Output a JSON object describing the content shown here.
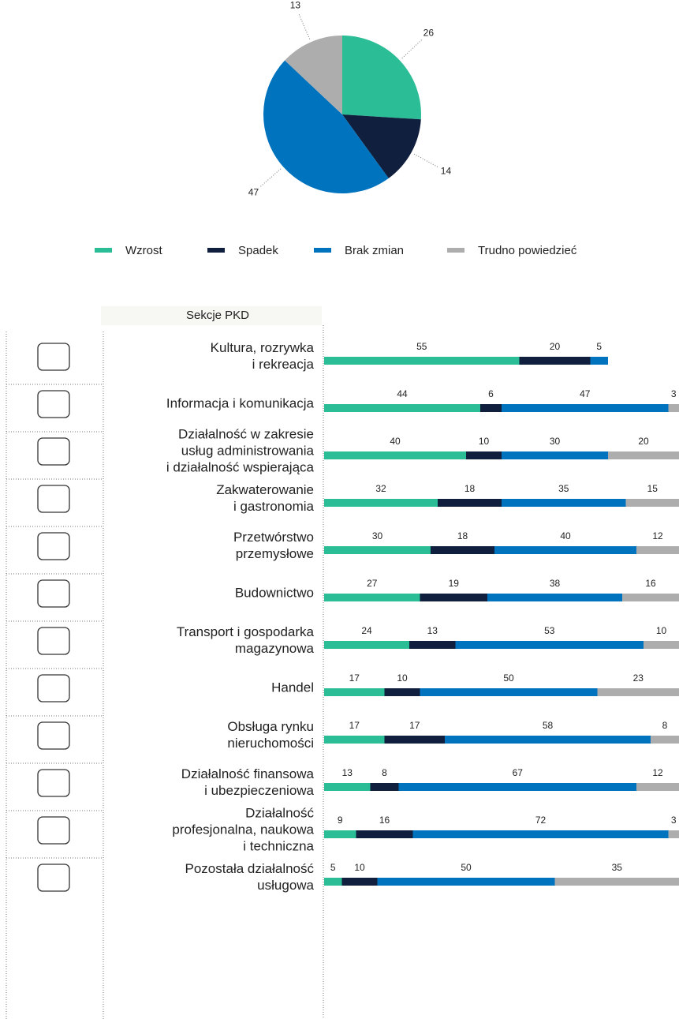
{
  "chart_data": [
    {
      "type": "pie",
      "categories": [
        "Wzrost",
        "Spadek",
        "Brak zmian",
        "Trudno powiedzieć"
      ],
      "values": [
        26,
        14,
        47,
        13
      ],
      "colors": [
        "#2bbd96",
        "#0f1f3d",
        "#0073bf",
        "#adadad"
      ],
      "legend": "bottom"
    },
    {
      "type": "stacked-bar-horizontal",
      "category_header": "Sekcje PKD",
      "categories": [
        [
          "Kultura, rozrywka",
          "i rekreacja"
        ],
        [
          "Informacja i komunikacja"
        ],
        [
          "Działalność w zakresie",
          "usług administrowania",
          "i działalność wspierająca"
        ],
        [
          "Zakwaterowanie",
          "i gastronomia"
        ],
        [
          "Przetwórstwo",
          "przemysłowe"
        ],
        [
          "Budownictwo"
        ],
        [
          "Transport i gospodarka",
          "magazynowa"
        ],
        [
          "Handel"
        ],
        [
          "Obsługa rynku",
          "nieruchomości"
        ],
        [
          "Działalność finansowa",
          "i ubezpieczeniowa"
        ],
        [
          "Działalność",
          "profesjonalna, naukowa",
          "i techniczna"
        ],
        [
          "Pozostała działalność",
          "usługowa"
        ]
      ],
      "xlim": [
        0,
        100
      ],
      "series": [
        {
          "name": "Wzrost",
          "color": "#2bbd96",
          "values": [
            55,
            44,
            40,
            32,
            30,
            27,
            24,
            17,
            17,
            13,
            9,
            5
          ]
        },
        {
          "name": "Spadek",
          "color": "#0f1f3d",
          "values": [
            20,
            6,
            10,
            18,
            18,
            19,
            13,
            10,
            17,
            8,
            16,
            10
          ]
        },
        {
          "name": "Brak zmian",
          "color": "#0073bf",
          "values": [
            5,
            47,
            30,
            35,
            40,
            38,
            53,
            50,
            58,
            67,
            72,
            50
          ]
        },
        {
          "name": "Trudno powiedzieć",
          "color": "#adadad",
          "values": [
            null,
            3,
            20,
            15,
            12,
            16,
            10,
            23,
            8,
            12,
            3,
            35
          ]
        }
      ]
    }
  ]
}
